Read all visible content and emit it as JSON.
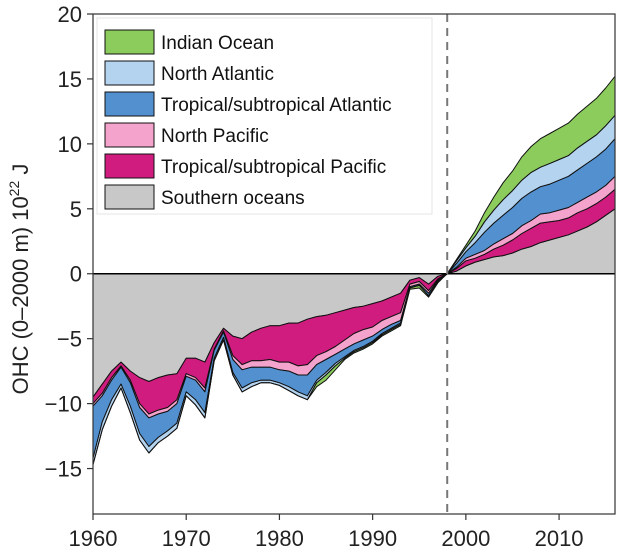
{
  "chart_data": {
    "type": "area",
    "stacked": true,
    "title": "",
    "xlabel": "",
    "ylabel": "OHC (0–2000 m) 10",
    "ylabel_superscript": "22",
    "ylabel_unit": " J",
    "xlim": [
      1960,
      2016
    ],
    "ylim": [
      -18.5,
      20
    ],
    "x_ticks": [
      1960,
      1970,
      1980,
      1990,
      2000,
      2010
    ],
    "y_ticks": [
      -15,
      -10,
      -5,
      0,
      5,
      10,
      15,
      20
    ],
    "y_tick_labels": [
      "−15",
      "−10",
      "−5",
      "0",
      "5",
      "10",
      "15",
      "20"
    ],
    "grid": false,
    "zero_line": true,
    "reference_line": {
      "x": 1998,
      "style": "dashed"
    },
    "legend_position": "top-left",
    "legend_order": [
      "Indian Ocean",
      "North Atlantic",
      "Tropical/subtropical Atlantic",
      "North Pacific",
      "Tropical/subtropical Pacific",
      "Southern oceans"
    ],
    "x": [
      1960,
      1961,
      1962,
      1963,
      1964,
      1965,
      1966,
      1967,
      1968,
      1969,
      1970,
      1971,
      1972,
      1973,
      1974,
      1975,
      1976,
      1977,
      1978,
      1979,
      1980,
      1981,
      1982,
      1983,
      1984,
      1985,
      1986,
      1987,
      1988,
      1989,
      1990,
      1991,
      1992,
      1993,
      1994,
      1995,
      1996,
      1997,
      1998,
      1999,
      2000,
      2001,
      2002,
      2003,
      2004,
      2005,
      2006,
      2007,
      2008,
      2009,
      2010,
      2011,
      2012,
      2013,
      2014,
      2015,
      2016
    ],
    "series": [
      {
        "name": "Southern oceans",
        "color": "#c8c8c8",
        "values": [
          -9.5,
          -8.5,
          -7.5,
          -6.8,
          -7.5,
          -8.0,
          -8.3,
          -8.0,
          -7.8,
          -7.7,
          -6.5,
          -6.5,
          -6.8,
          -5.3,
          -4.2,
          -4.8,
          -5.0,
          -4.5,
          -4.2,
          -4.0,
          -4.0,
          -3.8,
          -3.8,
          -3.5,
          -3.3,
          -3.2,
          -3.0,
          -2.8,
          -2.6,
          -2.5,
          -2.3,
          -2.1,
          -1.8,
          -1.5,
          -0.5,
          -0.3,
          -0.8,
          -0.2,
          0.0,
          0.2,
          0.6,
          0.9,
          1.1,
          1.3,
          1.4,
          1.6,
          1.9,
          2.1,
          2.4,
          2.6,
          2.8,
          3.0,
          3.3,
          3.6,
          4.0,
          4.5,
          5.0
        ]
      },
      {
        "name": "Tropical/subtropical Pacific",
        "color": "#d01c7f",
        "values": [
          -0.5,
          -0.7,
          -0.5,
          -0.3,
          -0.7,
          -2.0,
          -2.5,
          -2.5,
          -2.5,
          -2.0,
          -1.2,
          -1.5,
          -2.0,
          -0.5,
          -0.2,
          -1.5,
          -2.0,
          -2.2,
          -2.5,
          -2.6,
          -2.8,
          -3.0,
          -3.3,
          -3.5,
          -3.0,
          -2.8,
          -2.6,
          -2.3,
          -2.0,
          -1.8,
          -1.8,
          -1.5,
          -1.5,
          -1.5,
          -0.3,
          -0.3,
          -0.5,
          -0.2,
          0.0,
          0.2,
          0.4,
          0.3,
          0.4,
          0.6,
          0.8,
          1.0,
          1.2,
          1.4,
          1.5,
          1.4,
          1.3,
          1.3,
          1.4,
          1.4,
          1.4,
          1.4,
          1.5
        ]
      },
      {
        "name": "North Pacific",
        "color": "#f4a3cc",
        "values": [
          -0.2,
          -0.2,
          -0.2,
          -0.1,
          -0.2,
          -0.3,
          -0.3,
          -0.3,
          -0.3,
          -0.3,
          -0.2,
          -0.2,
          -0.3,
          -0.1,
          -0.1,
          -0.3,
          -0.4,
          -0.5,
          -0.5,
          -0.6,
          -0.6,
          -0.7,
          -0.7,
          -0.8,
          -0.7,
          -0.6,
          -0.6,
          -0.7,
          -0.8,
          -0.8,
          -0.7,
          -0.7,
          -0.6,
          -0.6,
          -0.2,
          -0.2,
          -0.2,
          -0.1,
          0.0,
          0.1,
          0.2,
          0.3,
          0.3,
          0.4,
          0.5,
          0.5,
          0.6,
          0.6,
          0.7,
          0.7,
          0.8,
          0.8,
          0.8,
          0.9,
          0.9,
          0.9,
          1.0
        ]
      },
      {
        "name": "Tropical/subtropical Atlantic",
        "color": "#5390d0",
        "values": [
          -4.0,
          -2.0,
          -1.5,
          -1.3,
          -1.8,
          -2.0,
          -2.2,
          -1.8,
          -1.5,
          -1.5,
          -1.2,
          -1.5,
          -1.6,
          -0.6,
          -0.4,
          -1.0,
          -1.4,
          -1.2,
          -1.0,
          -1.0,
          -1.0,
          -1.2,
          -1.3,
          -1.6,
          -1.2,
          -1.0,
          -0.7,
          -0.6,
          -0.5,
          -0.5,
          -0.4,
          -0.3,
          -0.3,
          -0.2,
          -0.1,
          -0.1,
          -0.2,
          -0.1,
          0.0,
          0.3,
          0.5,
          0.9,
          1.4,
          1.6,
          1.8,
          2.0,
          2.1,
          2.2,
          2.1,
          2.2,
          2.3,
          2.4,
          2.5,
          2.6,
          2.7,
          2.8,
          2.9
        ]
      },
      {
        "name": "North Atlantic",
        "color": "#b3d3ef",
        "values": [
          -0.5,
          -0.6,
          -0.5,
          -0.3,
          -0.5,
          -0.5,
          -0.5,
          -0.4,
          -0.4,
          -0.4,
          -0.3,
          -0.4,
          -0.4,
          -0.2,
          -0.2,
          -0.2,
          -0.3,
          -0.3,
          -0.2,
          -0.2,
          -0.2,
          -0.3,
          -0.3,
          -0.3,
          -0.2,
          -0.2,
          -0.2,
          -0.1,
          -0.1,
          -0.1,
          -0.1,
          -0.1,
          -0.1,
          -0.1,
          0.0,
          0.0,
          0.0,
          0.0,
          0.0,
          0.2,
          0.3,
          0.5,
          0.8,
          1.0,
          1.2,
          1.3,
          1.4,
          1.5,
          1.5,
          1.6,
          1.6,
          1.6,
          1.7,
          1.7,
          1.7,
          1.8,
          1.8
        ]
      },
      {
        "name": "Indian Ocean",
        "color": "#8ccc5c",
        "values": [
          0.0,
          0.0,
          0.0,
          0.0,
          0.0,
          0.0,
          0.0,
          0.0,
          0.0,
          0.0,
          0.0,
          0.0,
          0.0,
          0.0,
          0.0,
          0.0,
          0.0,
          0.0,
          0.0,
          0.0,
          0.0,
          0.0,
          0.0,
          0.0,
          -0.3,
          -0.4,
          -0.3,
          -0.1,
          -0.1,
          -0.1,
          -0.1,
          -0.1,
          -0.1,
          -0.1,
          -0.1,
          -0.2,
          -0.1,
          -0.1,
          0.0,
          0.1,
          0.2,
          0.4,
          0.7,
          1.0,
          1.3,
          1.5,
          1.8,
          2.0,
          2.2,
          2.3,
          2.4,
          2.5,
          2.6,
          2.7,
          2.8,
          2.9,
          3.0
        ]
      }
    ]
  }
}
